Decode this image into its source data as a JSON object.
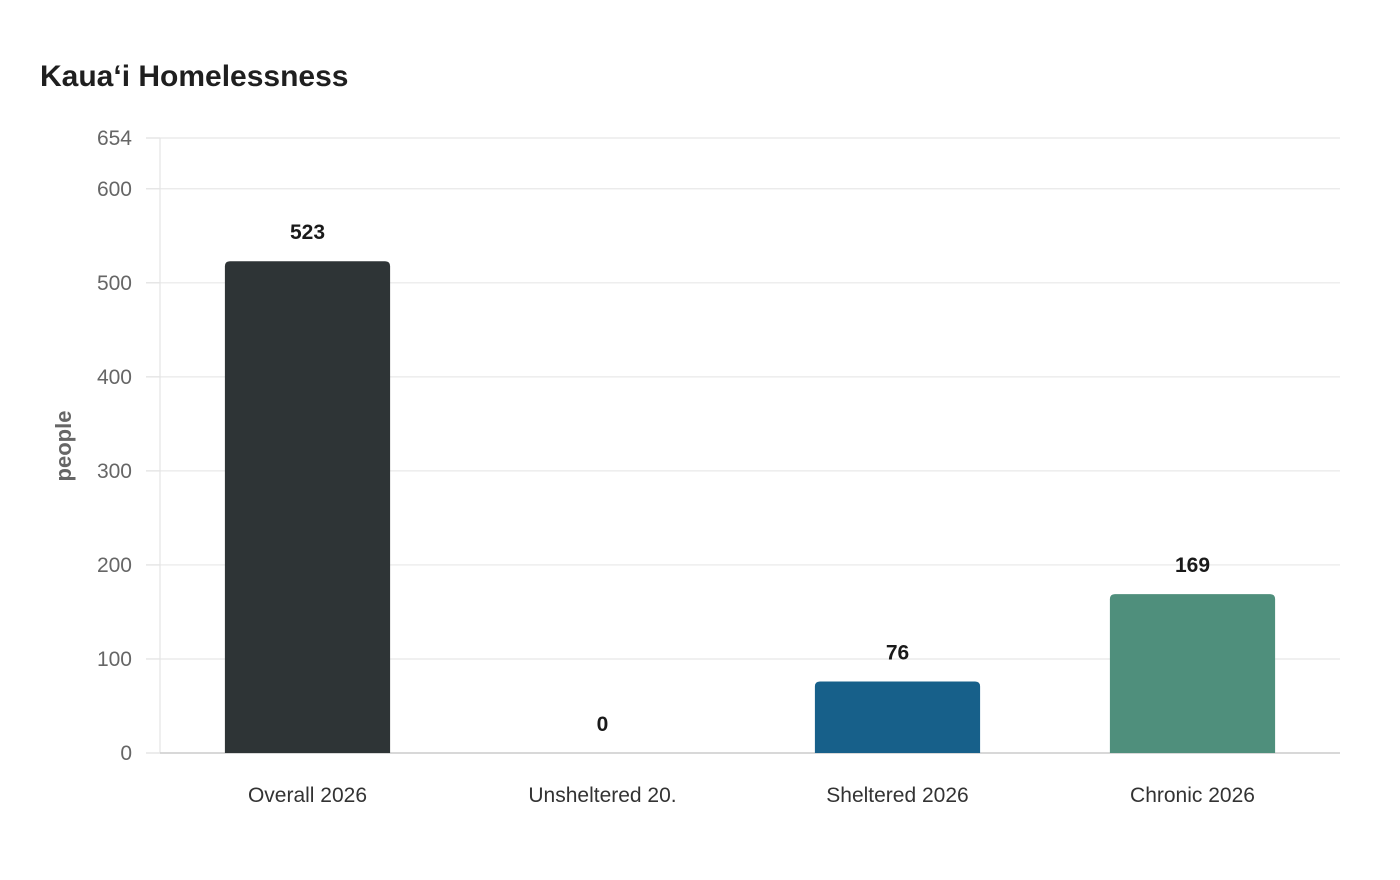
{
  "chart_data": {
    "type": "bar",
    "title": "Kauaʻi Homelessness",
    "xlabel": "",
    "ylabel": "people",
    "categories": [
      "Overall 2026",
      "Unsheltered 20.",
      "Sheltered 2026",
      "Chronic 2026"
    ],
    "values": [
      523,
      0,
      76,
      169
    ],
    "colors": [
      "#2e3436",
      "#e4572e",
      "#17608a",
      "#4f8f7c"
    ],
    "ylim": [
      0,
      654
    ],
    "yticks": [
      0,
      100,
      200,
      300,
      400,
      500,
      600,
      654
    ],
    "grid": true,
    "legend": "none"
  }
}
